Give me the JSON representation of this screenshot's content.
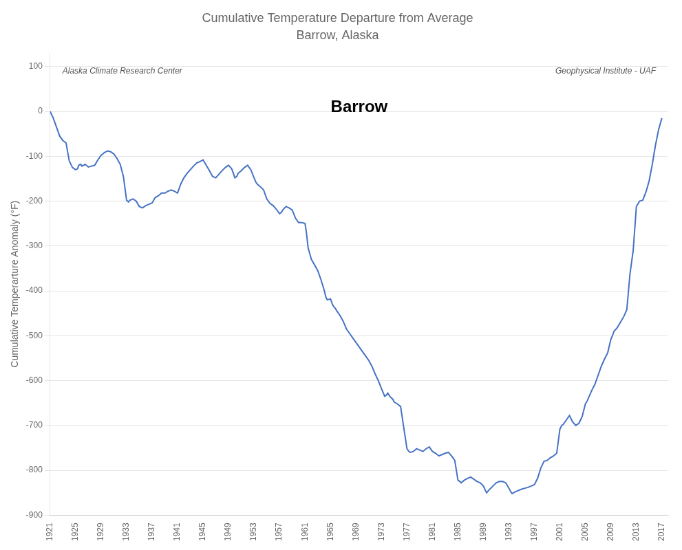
{
  "chart_data": {
    "type": "line",
    "title": "Cumulative Temperature Departure from Average",
    "subtitle": "Barrow, Alaska",
    "y_label": "Cumulative Temperarture Anomaly (°F)",
    "annotations": [
      "Alaska Climate Research Center",
      "Geophysical Institute - UAF",
      "Barrow"
    ],
    "color": "#4472C4",
    "grid": "y",
    "xlim": [
      1921,
      2018
    ],
    "ylim": [
      -900,
      130
    ],
    "xticks": [
      1921,
      1925,
      1929,
      1933,
      1937,
      1941,
      1945,
      1949,
      1953,
      1957,
      1961,
      1965,
      1969,
      1973,
      1977,
      1981,
      1985,
      1989,
      1993,
      1997,
      2001,
      2005,
      2009,
      2013,
      2017
    ],
    "yticks": [
      100,
      0,
      -100,
      -200,
      -300,
      -400,
      -500,
      -600,
      -700,
      -800,
      -900
    ],
    "x": [
      1921.0,
      1921.5,
      1922.0,
      1922.5,
      1923.0,
      1923.5,
      1924.0,
      1924.5,
      1925.0,
      1925.3,
      1925.5,
      1925.8,
      1926.0,
      1926.5,
      1927.0,
      1927.5,
      1928.0,
      1928.5,
      1929.0,
      1929.5,
      1930.0,
      1930.5,
      1931.0,
      1931.5,
      1932.0,
      1932.5,
      1933.0,
      1933.3,
      1933.5,
      1934.0,
      1934.5,
      1935.0,
      1935.5,
      1936.0,
      1936.5,
      1937.0,
      1937.5,
      1938.0,
      1938.5,
      1939.0,
      1939.5,
      1940.0,
      1940.5,
      1941.0,
      1941.5,
      1942.0,
      1942.5,
      1943.0,
      1943.5,
      1944.0,
      1944.5,
      1945.0,
      1945.5,
      1946.0,
      1946.5,
      1947.0,
      1947.5,
      1948.0,
      1948.5,
      1949.0,
      1949.5,
      1950.0,
      1950.3,
      1950.5,
      1951.0,
      1951.5,
      1952.0,
      1952.5,
      1953.0,
      1953.3,
      1953.5,
      1954.0,
      1954.5,
      1955.0,
      1955.5,
      1956.0,
      1956.5,
      1957.0,
      1957.3,
      1957.5,
      1958.0,
      1958.5,
      1959.0,
      1959.5,
      1960.0,
      1960.5,
      1961.0,
      1961.2,
      1961.5,
      1961.8,
      1962.0,
      1962.5,
      1963.0,
      1963.5,
      1964.0,
      1964.3,
      1964.5,
      1965.0,
      1965.3,
      1965.5,
      1965.8,
      1966.0,
      1966.5,
      1967.0,
      1967.5,
      1968.0,
      1968.5,
      1969.0,
      1969.5,
      1970.0,
      1970.5,
      1971.0,
      1971.5,
      1972.0,
      1972.5,
      1973.0,
      1973.3,
      1973.5,
      1973.8,
      1974.0,
      1974.3,
      1974.5,
      1974.8,
      1975.0,
      1975.5,
      1976.0,
      1976.5,
      1977.0,
      1977.3,
      1977.5,
      1978.0,
      1978.5,
      1979.0,
      1979.5,
      1980.0,
      1980.5,
      1981.0,
      1981.5,
      1982.0,
      1982.5,
      1983.0,
      1983.5,
      1984.0,
      1984.5,
      1985.0,
      1985.3,
      1985.5,
      1986.0,
      1986.5,
      1987.0,
      1987.5,
      1988.0,
      1988.5,
      1989.0,
      1989.3,
      1989.5,
      1990.0,
      1990.5,
      1991.0,
      1991.5,
      1992.0,
      1992.5,
      1993.0,
      1993.3,
      1993.5,
      1994.0,
      1994.5,
      1995.0,
      1995.5,
      1996.0,
      1996.5,
      1997.0,
      1997.5,
      1998.0,
      1998.5,
      1999.0,
      1999.5,
      2000.0,
      2000.5,
      2001.0,
      2001.3,
      2001.5,
      2002.0,
      2002.5,
      2003.0,
      2003.5,
      2004.0,
      2004.5,
      2005.0,
      2005.3,
      2005.5,
      2006.0,
      2006.5,
      2007.0,
      2007.5,
      2008.0,
      2008.5,
      2009.0,
      2009.3,
      2009.5,
      2010.0,
      2010.5,
      2011.0,
      2011.5,
      2012.0,
      2012.5,
      2013.0,
      2013.3,
      2013.5,
      2014.0,
      2014.5,
      2015.0,
      2015.5,
      2016.0,
      2016.5,
      2017.0
    ],
    "values": [
      0,
      -15,
      -35,
      -55,
      -65,
      -70,
      -110,
      -125,
      -130,
      -128,
      -120,
      -118,
      -122,
      -118,
      -124,
      -122,
      -120,
      -108,
      -98,
      -92,
      -88,
      -90,
      -95,
      -105,
      -118,
      -145,
      -198,
      -202,
      -198,
      -195,
      -200,
      -212,
      -215,
      -210,
      -207,
      -204,
      -192,
      -188,
      -182,
      -182,
      -178,
      -175,
      -178,
      -182,
      -162,
      -148,
      -138,
      -130,
      -122,
      -115,
      -112,
      -108,
      -120,
      -132,
      -145,
      -148,
      -140,
      -132,
      -125,
      -120,
      -128,
      -148,
      -145,
      -138,
      -132,
      -125,
      -120,
      -130,
      -148,
      -158,
      -162,
      -168,
      -175,
      -195,
      -205,
      -210,
      -218,
      -228,
      -225,
      -220,
      -212,
      -215,
      -220,
      -238,
      -248,
      -248,
      -250,
      -268,
      -305,
      -320,
      -330,
      -342,
      -355,
      -375,
      -398,
      -415,
      -420,
      -418,
      -430,
      -435,
      -440,
      -445,
      -455,
      -468,
      -485,
      -495,
      -505,
      -515,
      -525,
      -535,
      -545,
      -555,
      -568,
      -585,
      -600,
      -618,
      -628,
      -635,
      -632,
      -628,
      -635,
      -638,
      -642,
      -648,
      -652,
      -658,
      -705,
      -752,
      -758,
      -760,
      -758,
      -752,
      -755,
      -758,
      -752,
      -748,
      -758,
      -762,
      -768,
      -765,
      -762,
      -760,
      -768,
      -778,
      -822,
      -825,
      -828,
      -822,
      -818,
      -815,
      -820,
      -825,
      -828,
      -835,
      -845,
      -850,
      -842,
      -835,
      -828,
      -825,
      -825,
      -828,
      -840,
      -848,
      -852,
      -848,
      -845,
      -842,
      -840,
      -838,
      -835,
      -832,
      -818,
      -795,
      -780,
      -778,
      -772,
      -768,
      -762,
      -708,
      -700,
      -698,
      -688,
      -678,
      -692,
      -700,
      -695,
      -680,
      -652,
      -645,
      -638,
      -622,
      -608,
      -588,
      -568,
      -552,
      -538,
      -508,
      -498,
      -490,
      -482,
      -470,
      -458,
      -442,
      -362,
      -310,
      -212,
      -205,
      -200,
      -198,
      -180,
      -155,
      -118,
      -75,
      -40,
      -15
    ]
  }
}
